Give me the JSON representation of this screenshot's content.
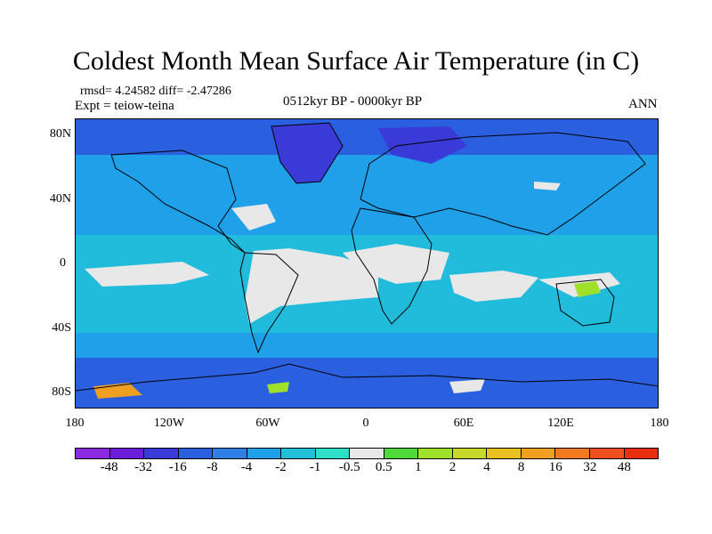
{
  "header": {
    "title": "Coldest Month Mean Surface Air Temperature (in C)",
    "stats": "rmsd= 4.24582 diff= -2.47286",
    "expt": "Expt = teiow-teina",
    "period": "0512kyr BP - 0000kyr BP",
    "season": "ANN"
  },
  "axes": {
    "lat_ticks": [
      "80N",
      "40N",
      "0",
      "40S",
      "80S"
    ],
    "lon_ticks": [
      "180",
      "120W",
      "60W",
      "0",
      "60E",
      "120E",
      "180"
    ]
  },
  "colorbar": {
    "labels": [
      "-48",
      "-32",
      "-16",
      "-8",
      "-4",
      "-2",
      "-1",
      "-0.5",
      "0.5",
      "1",
      "2",
      "4",
      "8",
      "16",
      "32",
      "48"
    ],
    "colors": [
      "#8a2be2",
      "#6a1ed8",
      "#3a3ad8",
      "#2a5fe0",
      "#2e7fe6",
      "#1fa0e8",
      "#22c0d8",
      "#2fe0c8",
      "#e8e8e8",
      "#4ed83a",
      "#9ee02a",
      "#c8d828",
      "#e8c020",
      "#f0a020",
      "#f07a20",
      "#f05020",
      "#e83010"
    ]
  },
  "map": {
    "background_color": "#1fa0e8",
    "ocean_band_color": "#22c0d8",
    "near_zero_color": "#e8e8e8",
    "cold_color": "#2a5fe0",
    "very_cold_color": "#3a3ad8",
    "warm_color": "#9ee02a",
    "hot_color": "#f0a020"
  }
}
